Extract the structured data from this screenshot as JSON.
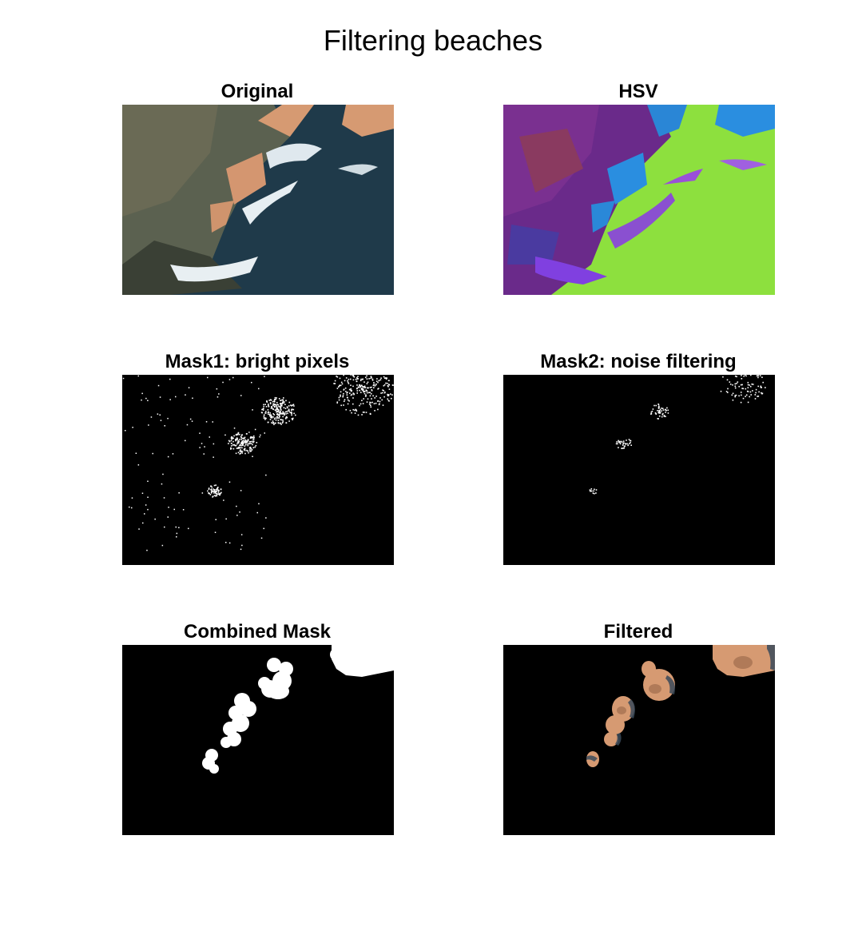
{
  "figure": {
    "title": "Filtering beaches"
  },
  "panels": [
    {
      "id": "original",
      "title": "Original"
    },
    {
      "id": "hsv",
      "title": "HSV"
    },
    {
      "id": "mask1",
      "title": "Mask1: bright pixels"
    },
    {
      "id": "mask2",
      "title": "Mask2: noise filtering"
    },
    {
      "id": "combined",
      "title": "Combined Mask"
    },
    {
      "id": "filtered",
      "title": "Filtered"
    }
  ],
  "colors": {
    "mask_background": "#000000",
    "mask_foreground": "#ffffff",
    "sea": "#1e3a4c",
    "land": "#5a6050",
    "sand": "#d69a72",
    "hsv_sea": "#8de03e",
    "hsv_land": "#6a2a8a",
    "hsv_blue": "#2a8ee0"
  }
}
